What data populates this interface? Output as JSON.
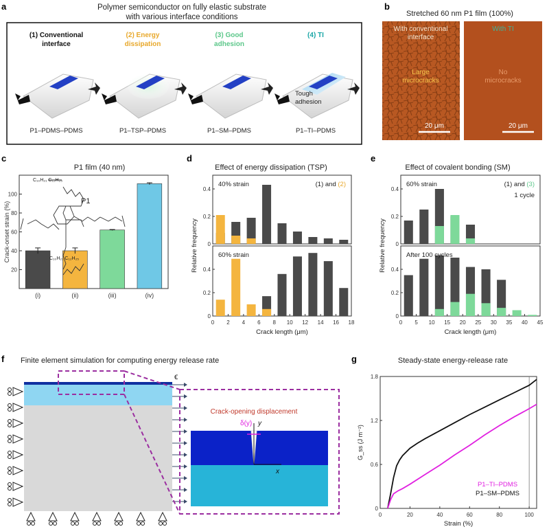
{
  "panel_a": {
    "letter": "a",
    "title_line1": "Polymer semiconductor on fully elastic substrate",
    "title_line2": "with various interface conditions",
    "columns": [
      {
        "line1": "(1) Conventional",
        "line2": "interface",
        "color": "#111111",
        "sample": "P1–PDMS–PDMS"
      },
      {
        "line1": "(2) Energy",
        "line2": "dissipation",
        "color": "#e8a82b",
        "sample": "P1–TSP–PDMS"
      },
      {
        "line1": "(3) Good",
        "line2": "adhesion",
        "color": "#5cc78a",
        "sample": "P1–SM–PDMS"
      },
      {
        "line1": "(4) TI",
        "line2": "",
        "color": "#1aa6a6",
        "sample": "P1–TI–PDMS"
      }
    ],
    "tough_line1": "Tough",
    "tough_line2": "adhesion"
  },
  "panel_b": {
    "letter": "b",
    "title": "Stretched 60 nm P1 film (100%)",
    "left": {
      "label_line1": "With conventional",
      "label_line2": "interface",
      "inner_line1": "Large",
      "inner_line2": "microcracks",
      "scale": "20 μm"
    },
    "right": {
      "label": "With TI",
      "inner_line1": "No",
      "inner_line2": "microcracks",
      "scale": "20 μm"
    }
  },
  "panel_c": {
    "letter": "c",
    "title": "P1 film (40 nm)",
    "molecule_label": "P1",
    "chain_top": "C₁₀H₂₁  C₁₂H₂₅",
    "chain_bottom": "C₁₀H₂₁  C₁₂H₂₅"
  },
  "panel_d": {
    "letter": "d",
    "title": "Effect of energy dissipation (TSP)"
  },
  "panel_e": {
    "letter": "e",
    "title": "Effect of covalent bonding (SM)"
  },
  "panel_f": {
    "letter": "f",
    "title": "Finite element simulation for computing energy release rate",
    "epsilon": "ϵ",
    "inset_title": "Crack-opening displacement",
    "delta": "δ(y)",
    "y_axis": "y",
    "x_axis": "x"
  },
  "panel_g": {
    "letter": "g",
    "title": "Steady-state energy-release rate"
  },
  "chart_data": [
    {
      "id": "c",
      "type": "bar",
      "ylabel": "Crack-onset strain (%)",
      "ylim": [
        0,
        120
      ],
      "yticks": [
        20,
        40,
        60,
        80,
        100
      ],
      "categories": [
        "(i)",
        "(ii)",
        "(iii)",
        "(iv)"
      ],
      "values": [
        40,
        40,
        62,
        111
      ],
      "errors": [
        3,
        3,
        0.5,
        1
      ],
      "colors": [
        "#4a4a4a",
        "#f4b53f",
        "#7ed99a",
        "#6fc8e6"
      ]
    },
    {
      "id": "d",
      "type": "bar",
      "xlabel": "Crack length (μm)",
      "ylabel": "Relative frequency",
      "xlim": [
        0,
        18
      ],
      "xticks": [
        0,
        2,
        4,
        6,
        8,
        10,
        12,
        14,
        16,
        18
      ],
      "legend_prefix": "(1) and ",
      "legend_suffix": "(2)",
      "legend_color": "#e8a82b",
      "subplots": [
        {
          "label": "40% strain",
          "ylim": [
            0,
            0.5
          ],
          "yticks": [
            0,
            0.2,
            0.4
          ],
          "series": [
            {
              "x": [
                1,
                3,
                5,
                7,
                9,
                11,
                13,
                15,
                17
              ],
              "values": [
                0.08,
                0.16,
                0.19,
                0.43,
                0.15,
                0.09,
                0.05,
                0.04,
                0.03
              ],
              "color": "#4a4a4a"
            },
            {
              "x": [
                1,
                3,
                5
              ],
              "values": [
                0.21,
                0.06,
                0.04
              ],
              "color": "#f4b53f"
            }
          ]
        },
        {
          "label": "60% strain",
          "ylim": [
            0,
            0.6
          ],
          "yticks": [
            0,
            0.2,
            0.4
          ],
          "series": [
            {
              "x": [
                7,
                9,
                11,
                13,
                15,
                17
              ],
              "values": [
                0.17,
                0.36,
                0.51,
                0.54,
                0.47,
                0.24
              ],
              "color": "#4a4a4a"
            },
            {
              "x": [
                1,
                3,
                5,
                7
              ],
              "values": [
                0.14,
                0.49,
                0.1,
                0.06
              ],
              "color": "#f4b53f"
            }
          ]
        }
      ]
    },
    {
      "id": "e",
      "type": "bar",
      "xlabel": "Crack length (μm)",
      "ylabel": "Relative frequency",
      "xlim": [
        0,
        45
      ],
      "xticks": [
        0,
        5,
        10,
        15,
        20,
        25,
        30,
        35,
        40,
        45
      ],
      "legend_prefix": "(1) and ",
      "legend_suffix": "(3)",
      "legend_color": "#5cc78a",
      "subplots": [
        {
          "label": "60% strain",
          "note": "1 cycle",
          "ylim": [
            0,
            0.5
          ],
          "yticks": [
            0,
            0.2,
            0.4
          ],
          "series": [
            {
              "x": [
                2.5,
                7.5,
                12.5,
                17.5,
                22.5
              ],
              "values": [
                0.17,
                0.25,
                0.4,
                0.2,
                0.14
              ],
              "color": "#4a4a4a"
            },
            {
              "x": [
                12.5,
                17.5,
                22.5
              ],
              "values": [
                0.13,
                0.21,
                0.04
              ],
              "color": "#7ed99a"
            }
          ]
        },
        {
          "label": "After 100 cycles",
          "ylim": [
            0,
            0.6
          ],
          "yticks": [
            0,
            0.2,
            0.4
          ],
          "series": [
            {
              "x": [
                2.5,
                7.5,
                12.5,
                17.5,
                22.5,
                27.5,
                32.5,
                37.5,
                42.5
              ],
              "values": [
                0.35,
                0.49,
                0.52,
                0.5,
                0.42,
                0.4,
                0.31,
                0.0,
                0.0
              ],
              "color": "#4a4a4a"
            },
            {
              "x": [
                12.5,
                17.5,
                22.5,
                27.5,
                32.5,
                37.5,
                42.5
              ],
              "values": [
                0.06,
                0.12,
                0.19,
                0.11,
                0.07,
                0.05,
                0.01
              ],
              "color": "#7ed99a"
            }
          ]
        }
      ]
    },
    {
      "id": "g",
      "type": "line",
      "xlabel": "Strain (%)",
      "ylabel": "G_ss (J m⁻²)",
      "xlim": [
        0,
        105
      ],
      "ylim": [
        0,
        1.8
      ],
      "xticks": [
        0,
        20,
        40,
        60,
        80,
        100
      ],
      "yticks": [
        0,
        0.6,
        1.2,
        1.8
      ],
      "series": [
        {
          "name": "P1–SM–PDMS",
          "color": "#111111",
          "x": [
            5,
            7,
            9,
            11,
            13,
            15,
            20,
            25,
            30,
            40,
            50,
            60,
            70,
            80,
            90,
            100,
            105
          ],
          "y": [
            0,
            0.2,
            0.42,
            0.58,
            0.66,
            0.72,
            0.82,
            0.89,
            0.95,
            1.06,
            1.17,
            1.28,
            1.38,
            1.48,
            1.58,
            1.68,
            1.76
          ]
        },
        {
          "name": "P1–TI–PDMS",
          "color": "#e020e0",
          "x": [
            5,
            7,
            9,
            12,
            15,
            20,
            30,
            40,
            50,
            60,
            70,
            80,
            90,
            100,
            105
          ],
          "y": [
            0,
            0.12,
            0.2,
            0.24,
            0.27,
            0.33,
            0.46,
            0.59,
            0.73,
            0.86,
            1.0,
            1.13,
            1.25,
            1.36,
            1.42
          ]
        }
      ]
    }
  ]
}
